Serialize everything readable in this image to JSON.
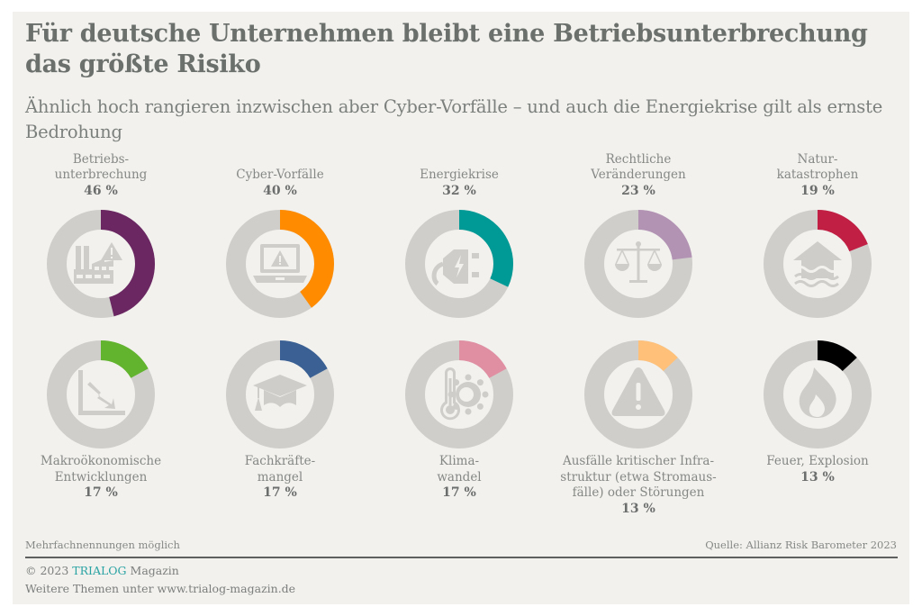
{
  "header": {
    "title": "Für deutsche Unternehmen bleibt eine Betriebsunterbrechung das größte Risiko",
    "subtitle": "Ähnlich hoch rangieren inzwischen aber Cyber-Vorfälle – und auch die Energiekrise gilt als ernste Bedrohung"
  },
  "chart_data": {
    "type": "pie",
    "subtype": "donut-grid",
    "title": "Für deutsche Unternehmen bleibt eine Betriebsunterbrechung das größte Risiko",
    "subtitle": "Ähnlich hoch rangieren inzwischen aber Cyber-Vorfälle – und auch die Energiekrise gilt als ernste Bedrohung",
    "unit": "%",
    "track_color": "#cfcecb",
    "items": [
      {
        "label_lines": [
          "Betriebs-",
          "unterbrechung"
        ],
        "label": "Betriebsunterbrechung",
        "value": 46,
        "value_label": "46 %",
        "color": "#6a2762",
        "icon": "factory-warning-icon"
      },
      {
        "label_lines": [
          "Cyber-Vorfälle"
        ],
        "label": "Cyber-Vorfälle",
        "value": 40,
        "value_label": "40 %",
        "color": "#ff8c00",
        "icon": "laptop-warning-icon"
      },
      {
        "label_lines": [
          "Energiekrise"
        ],
        "label": "Energiekrise",
        "value": 32,
        "value_label": "32 %",
        "color": "#009a96",
        "icon": "plug-lightning-icon"
      },
      {
        "label_lines": [
          "Rechtliche",
          "Veränderungen"
        ],
        "label": "Rechtliche Veränderungen",
        "value": 23,
        "value_label": "23 %",
        "color": "#b393b4",
        "icon": "scales-icon"
      },
      {
        "label_lines": [
          "Natur-",
          "katastrophen"
        ],
        "label": "Naturkatastrophen",
        "value": 19,
        "value_label": "19 %",
        "color": "#c11f44",
        "icon": "flooded-house-icon"
      },
      {
        "label_lines": [
          "Makroökonomische",
          "Entwicklungen"
        ],
        "label": "Makroökonomische Entwicklungen",
        "value": 17,
        "value_label": "17 %",
        "color": "#62b42e",
        "icon": "chart-down-icon"
      },
      {
        "label_lines": [
          "Fachkräfte-",
          "mangel"
        ],
        "label": "Fachkräftemangel",
        "value": 17,
        "value_label": "17 %",
        "color": "#3b6194",
        "icon": "graduation-cap-icon"
      },
      {
        "label_lines": [
          "Klima-",
          "wandel"
        ],
        "label": "Klimawandel",
        "value": 17,
        "value_label": "17 %",
        "color": "#e08fa2",
        "icon": "thermometer-sun-icon"
      },
      {
        "label_lines": [
          "Ausfälle kritischer Infra-",
          "struktur (etwa Stromaus-",
          "fälle) oder Störungen"
        ],
        "label": "Ausfälle kritischer Infrastruktur (etwa Stromausfälle) oder Störungen",
        "value": 13,
        "value_label": "13 %",
        "color": "#ffc17a",
        "icon": "warning-triangle-icon"
      },
      {
        "label_lines": [
          "Feuer, Explosion"
        ],
        "label": "Feuer, Explosion",
        "value": 13,
        "value_label": "13 %",
        "color": "#000000",
        "icon": "fire-icon"
      }
    ]
  },
  "footer": {
    "note": "Mehrfachnennungen möglich",
    "source": "Quelle: Allianz Risk Barometer 2023",
    "copyright_prefix": "© 2023",
    "brand": "TRIALOG",
    "brand_suffix": "Magazin",
    "more": "Weitere Themen unter www.trialog-magazin.de"
  },
  "colors": {
    "background": "#f2f1ee",
    "title": "#6b706d",
    "brand": "#2aa3a3"
  }
}
